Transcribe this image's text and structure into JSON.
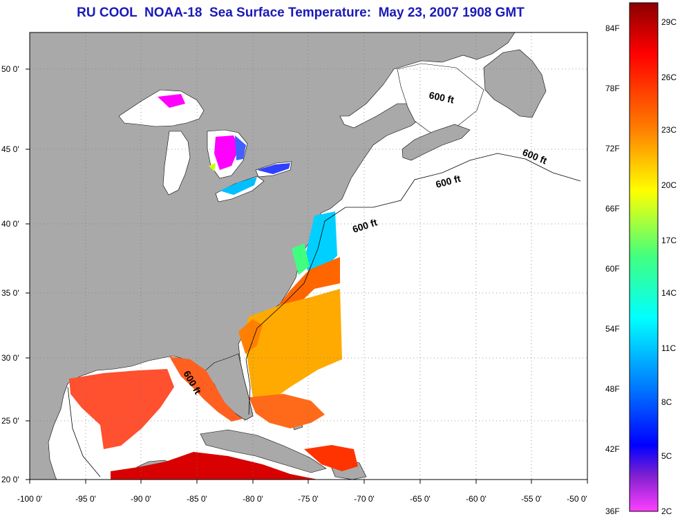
{
  "title": "RU COOL  NOAA-18  Sea Surface Temperature:  May 23, 2007 1908 GMT",
  "colors": {
    "land": "#a9a9a9",
    "ocean_no_data": "#ffffff",
    "title_text": "#1a1ab8"
  },
  "map": {
    "lon_ticks": [
      "-100 0'",
      "-95 0'",
      "-90 0'",
      "-85 0'",
      "-80 0'",
      "-75 0'",
      "-70 0'",
      "-65 0'",
      "-60 0'",
      "-55 0'",
      "-50 0'"
    ],
    "lat_ticks": [
      "50 0'",
      "45 0'",
      "40 0'",
      "35 0'",
      "30 0'",
      "25 0'",
      "20 0'"
    ],
    "contour_labels": [
      "600 ft",
      "600 ft",
      "600 ft",
      "600 ft",
      "600 ft"
    ]
  },
  "colorbar": {
    "fahrenheit_labels": [
      "84F",
      "78F",
      "72F",
      "66F",
      "60F",
      "54F",
      "48F",
      "42F",
      "36F"
    ],
    "celsius_labels": [
      "29C",
      "26C",
      "23C",
      "20C",
      "17C",
      "14C",
      "11C",
      "8C",
      "5C",
      "2C"
    ]
  }
}
